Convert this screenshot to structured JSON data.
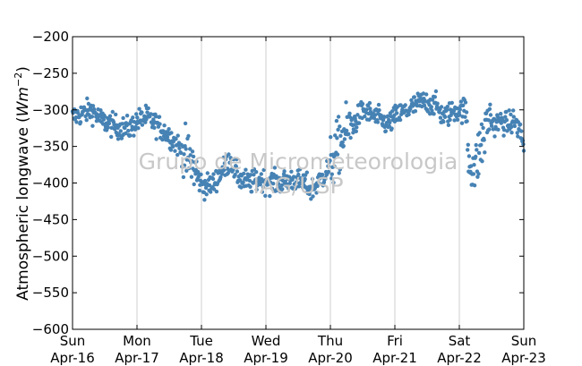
{
  "chart_data": {
    "type": "scatter",
    "title": "",
    "xlabel": "",
    "ylabel": "Atmospheric longwave",
    "ylabel_unit_math": {
      "base": "Wm",
      "sup": "−2"
    },
    "ylim": [
      -600,
      -200
    ],
    "yticks": [
      -200,
      -250,
      -300,
      -350,
      -400,
      -450,
      -500,
      -550,
      -600
    ],
    "ytick_labels": [
      "−200",
      "−250",
      "−300",
      "−350",
      "−400",
      "−450",
      "−500",
      "−550",
      "−600"
    ],
    "xlim_days": [
      0,
      7
    ],
    "xticks": [
      {
        "day": "Sun",
        "date": "Apr-16"
      },
      {
        "day": "Mon",
        "date": "Apr-17"
      },
      {
        "day": "Tue",
        "date": "Apr-18"
      },
      {
        "day": "Wed",
        "date": "Apr-19"
      },
      {
        "day": "Thu",
        "date": "Apr-20"
      },
      {
        "day": "Fri",
        "date": "Apr-21"
      },
      {
        "day": "Sat",
        "date": "Apr-22"
      },
      {
        "day": "Sun",
        "date": "Apr-23"
      }
    ],
    "grid": "vertical",
    "series": [
      {
        "color": "#4682b4",
        "trend_daily_points": [
          [
            0.0,
            -310
          ],
          [
            0.15,
            -305
          ],
          [
            0.3,
            -300
          ],
          [
            0.45,
            -315
          ],
          [
            0.6,
            -320
          ],
          [
            0.75,
            -325
          ],
          [
            0.9,
            -325
          ],
          [
            1.0,
            -315
          ],
          [
            1.15,
            -310
          ],
          [
            1.3,
            -320
          ],
          [
            1.5,
            -335
          ],
          [
            1.65,
            -350
          ],
          [
            1.75,
            -365
          ],
          [
            1.85,
            -370
          ],
          [
            1.95,
            -395
          ],
          [
            2.05,
            -405
          ],
          [
            2.2,
            -400
          ],
          [
            2.3,
            -385
          ],
          [
            2.4,
            -375
          ],
          [
            2.45,
            -365
          ],
          [
            2.5,
            -380
          ],
          [
            2.6,
            -395
          ],
          [
            2.75,
            -400
          ],
          [
            2.9,
            -395
          ],
          [
            3.0,
            -398
          ],
          [
            3.2,
            -400
          ],
          [
            3.4,
            -395
          ],
          [
            3.6,
            -400
          ],
          [
            3.7,
            -410
          ],
          [
            3.8,
            -400
          ],
          [
            3.9,
            -390
          ],
          [
            4.0,
            -375
          ],
          [
            4.1,
            -355
          ],
          [
            4.2,
            -335
          ],
          [
            4.3,
            -325
          ],
          [
            4.4,
            -315
          ],
          [
            4.5,
            -300
          ],
          [
            4.6,
            -305
          ],
          [
            4.7,
            -310
          ],
          [
            4.8,
            -315
          ],
          [
            4.9,
            -320
          ],
          [
            5.0,
            -310
          ],
          [
            5.1,
            -305
          ],
          [
            5.2,
            -300
          ],
          [
            5.3,
            -295
          ],
          [
            5.4,
            -290
          ],
          [
            5.55,
            -290
          ],
          [
            5.65,
            -295
          ],
          [
            5.75,
            -310
          ],
          [
            5.85,
            -305
          ],
          [
            5.95,
            -300
          ],
          [
            6.1,
            -300
          ],
          [
            6.15,
            -370
          ],
          [
            6.25,
            -380
          ],
          [
            6.3,
            -360
          ],
          [
            6.4,
            -330
          ],
          [
            6.45,
            -310
          ],
          [
            6.55,
            -320
          ],
          [
            6.65,
            -315
          ],
          [
            6.75,
            -320
          ],
          [
            6.85,
            -315
          ],
          [
            6.95,
            -330
          ],
          [
            7.0,
            -350
          ]
        ],
        "scatter_spread": 8
      }
    ],
    "watermark": [
      "Grupo de Micrometeorologia",
      "IAG/USP"
    ]
  }
}
